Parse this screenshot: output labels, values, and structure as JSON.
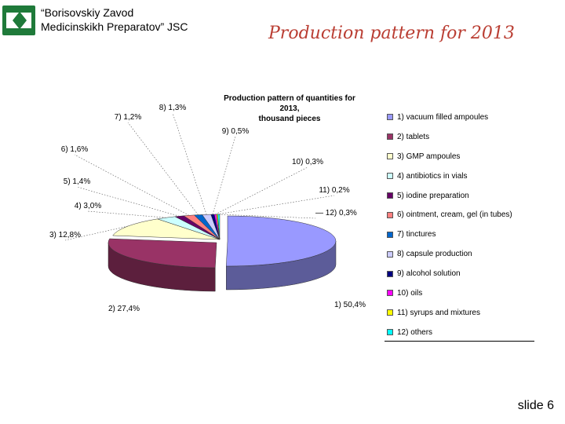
{
  "header": {
    "company_line1": "“Borisovskiy Zavod",
    "company_line2": "Medicinskikh Preparatov” JSC",
    "slide_title": "Production pattern for 2013",
    "logo_icon": "company-logo-icon",
    "logo_color": "#1f7a3a"
  },
  "chart_data": {
    "type": "pie",
    "title_lines": [
      "Production pattern of quantities for",
      "2013,",
      "thousand pieces"
    ],
    "legend_placement": "right",
    "slices": [
      {
        "label": "1) vacuum filled ampoules",
        "data_label": "1) 50,4%",
        "value": 50.4,
        "color": "#9999ff"
      },
      {
        "label": "2) tablets",
        "data_label": "2) 27,4%",
        "value": 27.4,
        "color": "#993366"
      },
      {
        "label": "3) GMP ampoules",
        "data_label": "3) 12,8%",
        "value": 12.8,
        "color": "#ffffcc"
      },
      {
        "label": "4) antibiotics in vials",
        "data_label": "4) 3,0%",
        "value": 3.0,
        "color": "#ccffff"
      },
      {
        "label": "5) iodine preparation",
        "data_label": "5) 1,4%",
        "value": 1.4,
        "color": "#660066"
      },
      {
        "label": "6) ointment, cream, gel (in tubes)",
        "data_label": "6) 1,6%",
        "value": 1.6,
        "color": "#ff8080"
      },
      {
        "label": "7) tinctures",
        "data_label": "7) 1,2%",
        "value": 1.2,
        "color": "#0066cc"
      },
      {
        "label": "8) capsule production",
        "data_label": "8) 1,3%",
        "value": 1.3,
        "color": "#ccccff"
      },
      {
        "label": "9) alcohol solution",
        "data_label": "9) 0,5%",
        "value": 0.5,
        "color": "#000080"
      },
      {
        "label": "10) oils",
        "data_label": "10) 0,3%",
        "value": 0.3,
        "color": "#ff00ff"
      },
      {
        "label": "11) syrups and mixtures",
        "data_label": "11) 0,2%",
        "value": 0.2,
        "color": "#ffff00"
      },
      {
        "label": "12) others",
        "data_label": "— 12) 0,3%",
        "value": 0.3,
        "color": "#00ffff"
      }
    ]
  },
  "footer": {
    "slide_number": "slide 6"
  }
}
